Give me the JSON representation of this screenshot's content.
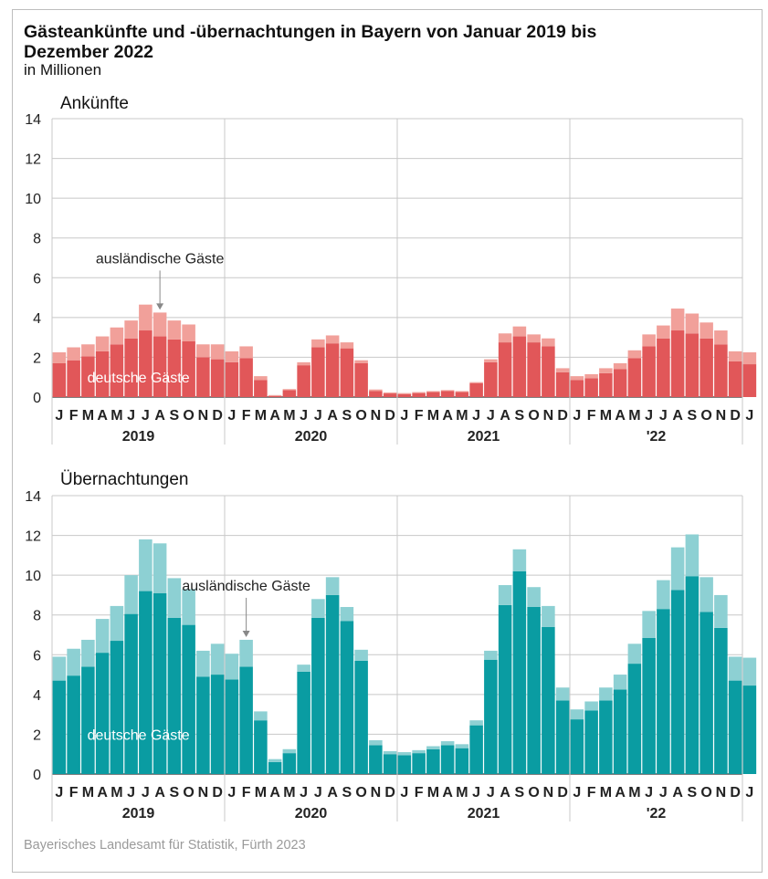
{
  "title": "Gästeankünfte und -übernachtungen in Bayern von Januar 2019 bis Dezember 2022",
  "subtitle": "in Millionen",
  "source": "Bayerisches Landesamt für Statistik, Fürth 2023",
  "colors": {
    "arrivals_german": "#e15759",
    "arrivals_foreign": "#f1a09a",
    "nights_german": "#0a9ca2",
    "nights_foreign": "#8dd0d3",
    "grid": "#c8c8c8"
  },
  "chart_data": [
    {
      "type": "bar",
      "stacked": true,
      "title": "Ankünfte",
      "month_labels": [
        "J",
        "F",
        "M",
        "A",
        "M",
        "J",
        "J",
        "A",
        "S",
        "O",
        "N",
        "D"
      ],
      "year_labels": [
        "2019",
        "2020",
        "2021",
        "'22"
      ],
      "ylim": [
        0,
        14
      ],
      "yticks": [
        0,
        2,
        4,
        6,
        8,
        10,
        12,
        14
      ],
      "grid": true,
      "annotations": {
        "foreign_label": "ausländische Gäste",
        "foreign_arrow_index": 7,
        "german_label": "deutsche Gäste"
      },
      "series": [
        {
          "name": "deutsche Gäste",
          "values": [
            1.7,
            1.85,
            2.05,
            2.3,
            2.65,
            2.95,
            3.35,
            3.05,
            2.9,
            2.8,
            2.0,
            1.9,
            1.75,
            1.95,
            0.85,
            0.05,
            0.35,
            1.6,
            2.5,
            2.7,
            2.45,
            1.7,
            0.3,
            0.18,
            0.15,
            0.2,
            0.25,
            0.3,
            0.25,
            0.7,
            1.75,
            2.75,
            3.05,
            2.75,
            2.55,
            1.25,
            0.85,
            0.95,
            1.2,
            1.4,
            1.95,
            2.55,
            2.95,
            3.35,
            3.2,
            2.95,
            2.65,
            1.8,
            1.65
          ]
        },
        {
          "name": "ausländische Gäste",
          "values": [
            0.55,
            0.65,
            0.6,
            0.75,
            0.85,
            0.9,
            1.3,
            1.2,
            0.95,
            0.85,
            0.65,
            0.75,
            0.55,
            0.6,
            0.2,
            0.05,
            0.05,
            0.15,
            0.4,
            0.4,
            0.3,
            0.15,
            0.08,
            0.05,
            0.05,
            0.05,
            0.05,
            0.05,
            0.05,
            0.05,
            0.15,
            0.45,
            0.5,
            0.4,
            0.4,
            0.2,
            0.2,
            0.2,
            0.25,
            0.3,
            0.4,
            0.6,
            0.65,
            1.1,
            1.0,
            0.8,
            0.7,
            0.5,
            0.6
          ]
        }
      ]
    },
    {
      "type": "bar",
      "stacked": true,
      "title": "Übernachtungen",
      "month_labels": [
        "J",
        "F",
        "M",
        "A",
        "M",
        "J",
        "J",
        "A",
        "S",
        "O",
        "N",
        "D"
      ],
      "year_labels": [
        "2019",
        "2020",
        "2021",
        "'22"
      ],
      "ylim": [
        0,
        14
      ],
      "yticks": [
        0,
        2,
        4,
        6,
        8,
        10,
        12,
        14
      ],
      "grid": true,
      "annotations": {
        "foreign_label": "ausländische Gäste",
        "foreign_arrow_index": 13,
        "german_label": "deutsche Gäste"
      },
      "series": [
        {
          "name": "deutsche Gäste",
          "values": [
            4.7,
            4.95,
            5.4,
            6.1,
            6.7,
            8.05,
            9.2,
            9.1,
            7.85,
            7.5,
            4.9,
            5.0,
            4.75,
            5.4,
            2.7,
            0.6,
            1.05,
            5.15,
            7.85,
            9.0,
            7.7,
            5.7,
            1.45,
            1.0,
            0.95,
            1.05,
            1.25,
            1.45,
            1.3,
            2.45,
            5.75,
            8.5,
            10.2,
            8.4,
            7.4,
            3.7,
            2.75,
            3.2,
            3.7,
            4.25,
            5.55,
            6.85,
            8.3,
            9.25,
            9.95,
            8.15,
            7.35,
            4.7,
            4.45
          ]
        },
        {
          "name": "ausländische Gäste",
          "values": [
            1.2,
            1.35,
            1.35,
            1.7,
            1.75,
            1.95,
            2.6,
            2.5,
            2.0,
            1.8,
            1.3,
            1.55,
            1.3,
            1.35,
            0.45,
            0.15,
            0.2,
            0.35,
            0.95,
            0.9,
            0.7,
            0.55,
            0.25,
            0.15,
            0.15,
            0.15,
            0.15,
            0.2,
            0.2,
            0.25,
            0.45,
            1.0,
            1.1,
            1.0,
            1.05,
            0.65,
            0.5,
            0.45,
            0.65,
            0.75,
            1.0,
            1.35,
            1.45,
            2.15,
            2.1,
            1.75,
            1.65,
            1.2,
            1.4
          ]
        }
      ]
    }
  ]
}
